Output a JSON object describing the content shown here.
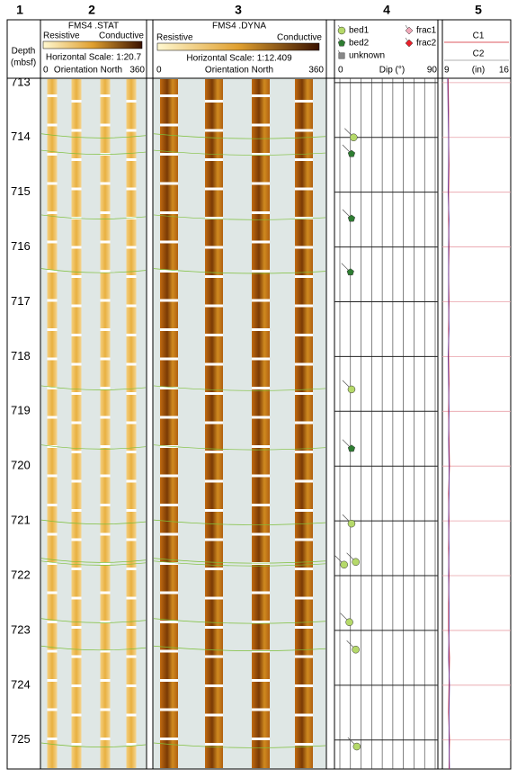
{
  "columns": [
    "1",
    "2",
    "3",
    "4",
    "5"
  ],
  "depth_axis": {
    "label": "Depth",
    "unit": "(mbsf)",
    "ylim": [
      712.92,
      725.53
    ],
    "yticks": [
      713,
      714,
      715,
      716,
      717,
      718,
      719,
      720,
      721,
      722,
      723,
      724,
      725
    ]
  },
  "stat_image": {
    "title": "FMS4 .STAT",
    "low": "Resistive",
    "high": "Conductive",
    "scale": "Horizontal Scale: 1:20.7",
    "start": "0",
    "orientation": "Orientation North",
    "end": "360"
  },
  "dyna_image": {
    "title": "FMS4 .DYNA",
    "low": "Resistive",
    "high": "Conductive",
    "scale": "Horizontal Scale: 1:12.409",
    "start": "0",
    "orientation": "Orientation North",
    "end": "360"
  },
  "dip": {
    "axis_label": "Dip (°)",
    "xlim": [
      0,
      90
    ],
    "xticks": [
      0,
      90
    ],
    "grid": [
      0,
      10,
      20,
      30,
      40,
      50,
      60,
      70,
      80,
      90
    ],
    "series": [
      {
        "name": "bed1",
        "color": "#b5d96a",
        "symbol": "circle",
        "depth": [
          714.0,
          718.6,
          721.05,
          721.8,
          721.75,
          722.85,
          723.35,
          725.12
        ],
        "dip": [
          13,
          11,
          11,
          4,
          15,
          9,
          15,
          16
        ]
      },
      {
        "name": "bed2",
        "color": "#2e7d32",
        "symbol": "pentagon",
        "depth": [
          714.3,
          715.48,
          716.46,
          719.68
        ],
        "dip": [
          11,
          11,
          10,
          11
        ]
      },
      {
        "name": "unknown",
        "color": "#888888",
        "symbol": "square",
        "depth": [],
        "dip": []
      },
      {
        "name": "frac1",
        "color": "#f0a8b8",
        "symbol": "diamond",
        "depth": [],
        "dip": []
      },
      {
        "name": "frac2",
        "color": "#e8202a",
        "symbol": "diamond",
        "depth": [],
        "dip": []
      }
    ]
  },
  "caliper": {
    "unit": "(in)",
    "xlim": [
      9,
      16
    ],
    "xticks": [
      9,
      16
    ],
    "depth": [
      712.92,
      713.5,
      714,
      714.5,
      715,
      715.5,
      716,
      716.5,
      717,
      717.5,
      718,
      718.5,
      719,
      719.5,
      720,
      720.5,
      721,
      721.5,
      722,
      722.5,
      723,
      723.5,
      724,
      724.5,
      725,
      725.53
    ],
    "series": [
      {
        "name": "C1",
        "color": "#d0202a",
        "values": [
          9.25,
          9.3,
          9.3,
          9.35,
          9.3,
          9.3,
          9.35,
          9.3,
          9.35,
          9.3,
          9.3,
          9.35,
          9.3,
          9.35,
          9.4,
          9.3,
          9.35,
          9.3,
          9.35,
          9.3,
          9.3,
          9.4,
          9.35,
          9.3,
          9.4,
          9.35
        ]
      },
      {
        "name": "C2",
        "color": "#6a3fa0",
        "values": [
          9.2,
          9.25,
          9.3,
          9.3,
          9.25,
          9.35,
          9.3,
          9.3,
          9.3,
          9.35,
          9.25,
          9.3,
          9.35,
          9.3,
          9.35,
          9.35,
          9.3,
          9.35,
          9.3,
          9.35,
          9.35,
          9.3,
          9.4,
          9.35,
          9.35,
          9.4
        ]
      }
    ]
  }
}
